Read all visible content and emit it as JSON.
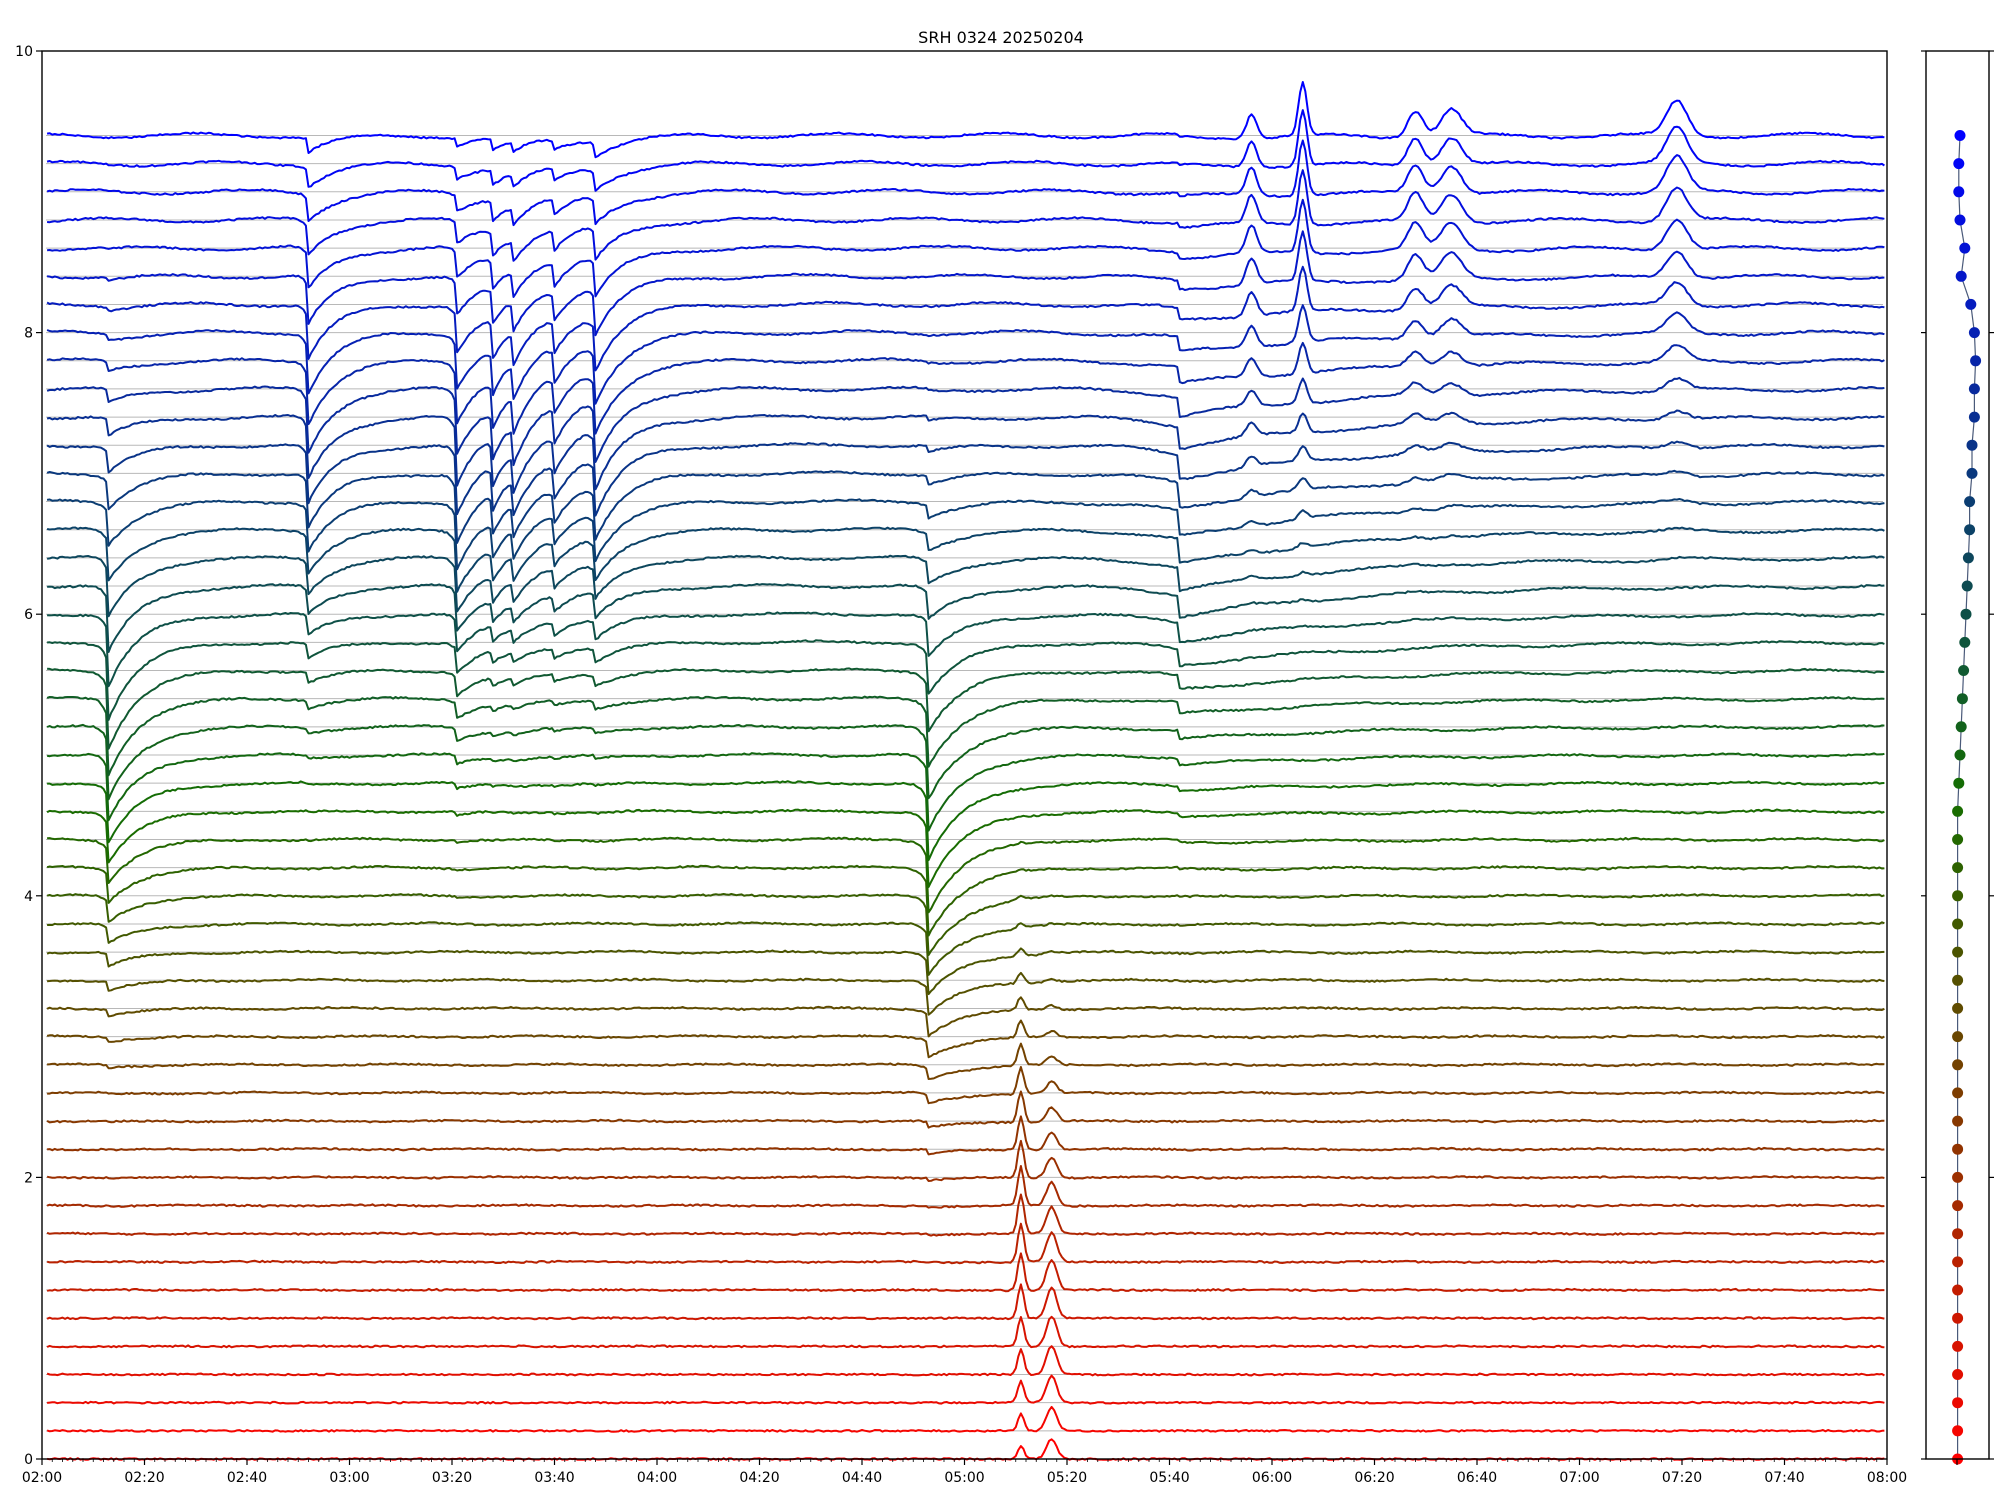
{
  "chart_data": [
    {
      "type": "line",
      "title": "SRH 0324 20250204",
      "xlabel": "",
      "ylabel": "",
      "xlim": [
        "02:00",
        "08:00"
      ],
      "ylim": [
        0,
        10
      ],
      "x_ticks": [
        "02:00",
        "02:20",
        "02:40",
        "03:00",
        "03:20",
        "03:40",
        "04:00",
        "04:20",
        "04:40",
        "05:00",
        "05:20",
        "05:40",
        "06:00",
        "06:20",
        "06:40",
        "07:00",
        "07:20",
        "07:40",
        "08:00"
      ],
      "y_ticks": [
        "0",
        "2",
        "4",
        "6",
        "8",
        "10"
      ],
      "grid": false,
      "legend": "none",
      "trace_count": 48,
      "trace_spacing": 0.2,
      "trace_baseline_start": 0,
      "color_top": "#0000ff",
      "color_bottom": "#ff0000",
      "events": [
        {
          "time": "02:13",
          "peak_trace": 28,
          "depth": 0.55,
          "width_min": 1.0
        },
        {
          "time": "02:52",
          "peak_trace": 38,
          "depth": 0.45,
          "width_min": 0.8
        },
        {
          "time": "03:21",
          "peak_trace": 36,
          "depth": 0.5,
          "width_min": 0.9
        },
        {
          "time": "03:28",
          "peak_trace": 38,
          "depth": 0.35,
          "width_min": 0.8
        },
        {
          "time": "03:32",
          "peak_trace": 38,
          "depth": 0.3,
          "width_min": 0.8
        },
        {
          "time": "03:40",
          "peak_trace": 38,
          "depth": 0.28,
          "width_min": 0.8
        },
        {
          "time": "03:48",
          "peak_trace": 38,
          "depth": 0.45,
          "width_min": 0.9
        },
        {
          "time": "04:53",
          "peak_trace": 24,
          "depth": 0.55,
          "width_min": 1.2
        },
        {
          "time": "05:42",
          "peak_trace": 34,
          "depth": 0.25,
          "width_min": 8
        },
        {
          "time": "05:11",
          "peak_trace": 8,
          "depth": -0.28,
          "width_min": 0.6
        },
        {
          "time": "05:17",
          "peak_trace": 5,
          "depth": -0.22,
          "width_min": 1.0
        },
        {
          "time": "05:56",
          "peak_trace": 44,
          "depth": -0.2,
          "width_min": 1.0
        },
        {
          "time": "06:06",
          "peak_trace": 45,
          "depth": -0.4,
          "width_min": 0.8
        },
        {
          "time": "06:28",
          "peak_trace": 45,
          "depth": -0.2,
          "width_min": 1.5
        },
        {
          "time": "06:35",
          "peak_trace": 45,
          "depth": -0.2,
          "width_min": 2.0
        },
        {
          "time": "07:19",
          "peak_trace": 46,
          "depth": -0.25,
          "width_min": 2.0
        }
      ]
    },
    {
      "type": "scatter",
      "title": "",
      "xlabel": "",
      "ylabel": "",
      "ylim": [
        0,
        10
      ],
      "x_ticks": [
        ""
      ],
      "series": [
        {
          "y": [
            0.0,
            0.2,
            0.4,
            0.6,
            0.8,
            1.0,
            1.2,
            1.4,
            1.6,
            1.8,
            2.0,
            2.2,
            2.4,
            2.6,
            2.8,
            3.0,
            3.2,
            3.4,
            3.6,
            3.8,
            4.0,
            4.2,
            4.4,
            4.6,
            4.8,
            5.0,
            5.2,
            5.4,
            5.6,
            5.8,
            6.0,
            6.2,
            6.4,
            6.6,
            6.8,
            7.0,
            7.2,
            7.4,
            7.6,
            7.8,
            8.0,
            8.2,
            8.4,
            8.6,
            8.8,
            9.0,
            9.2,
            9.4
          ],
          "x": [
            -0.2,
            -0.2,
            -0.2,
            -0.2,
            -0.2,
            -0.2,
            -0.2,
            -0.2,
            -0.2,
            -0.2,
            -0.2,
            -0.2,
            -0.2,
            -0.2,
            -0.2,
            -0.2,
            -0.2,
            -0.2,
            -0.2,
            -0.2,
            -0.2,
            -0.2,
            -0.2,
            -0.2,
            -0.1,
            0.0,
            0.1,
            0.2,
            0.3,
            0.4,
            0.5,
            0.6,
            0.7,
            0.8,
            0.8,
            1.0,
            1.0,
            1.2,
            1.2,
            1.3,
            1.2,
            0.9,
            0.1,
            0.4,
            0.0,
            -0.1,
            -0.1,
            0.0
          ]
        }
      ]
    }
  ]
}
